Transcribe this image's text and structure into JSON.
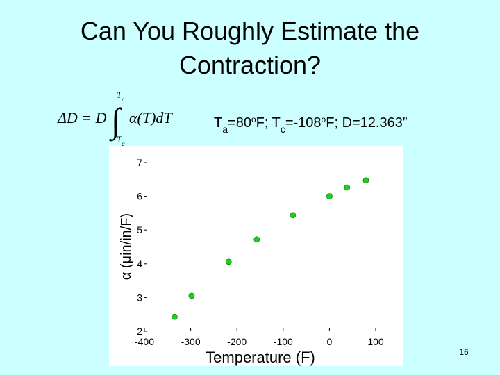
{
  "slide": {
    "title_lines": [
      "Can You Roughly Estimate the",
      "Contraction?"
    ],
    "formula": {
      "lhs": "ΔD = D",
      "integral": "∫",
      "upper": [
        {
          "text": "T"
        },
        {
          "text": "c",
          "style": "sub"
        }
      ],
      "lower": [
        {
          "text": "T"
        },
        {
          "text": "a",
          "style": "sub"
        }
      ],
      "integrand": "α(T)dT"
    },
    "annotation": [
      {
        "text": "T"
      },
      {
        "text": "a",
        "style": "sub"
      },
      {
        "text": "=80"
      },
      {
        "text": "o",
        "style": "sup"
      },
      {
        "text": "F; T"
      },
      {
        "text": "c",
        "style": "sub"
      },
      {
        "text": "=-108"
      },
      {
        "text": "o",
        "style": "sup"
      },
      {
        "text": "F; D=12.363”"
      }
    ],
    "page_number": "16"
  },
  "chart_data": {
    "type": "scatter",
    "x_label": "Temperature (F)",
    "y_label": "α (μin/in/F)",
    "x": [
      -335,
      -298,
      -218,
      -157,
      -79,
      0,
      38,
      79
    ],
    "values": [
      2.43,
      3.05,
      4.06,
      4.72,
      5.44,
      6.0,
      6.26,
      6.47
    ],
    "color": "#22cc22",
    "xlim": [
      -400,
      100
    ],
    "xticks": [
      -400,
      -300,
      -200,
      -100,
      0,
      100
    ],
    "ylim": [
      2,
      7
    ],
    "yticks": [
      2,
      3,
      4,
      5,
      6,
      7
    ]
  }
}
